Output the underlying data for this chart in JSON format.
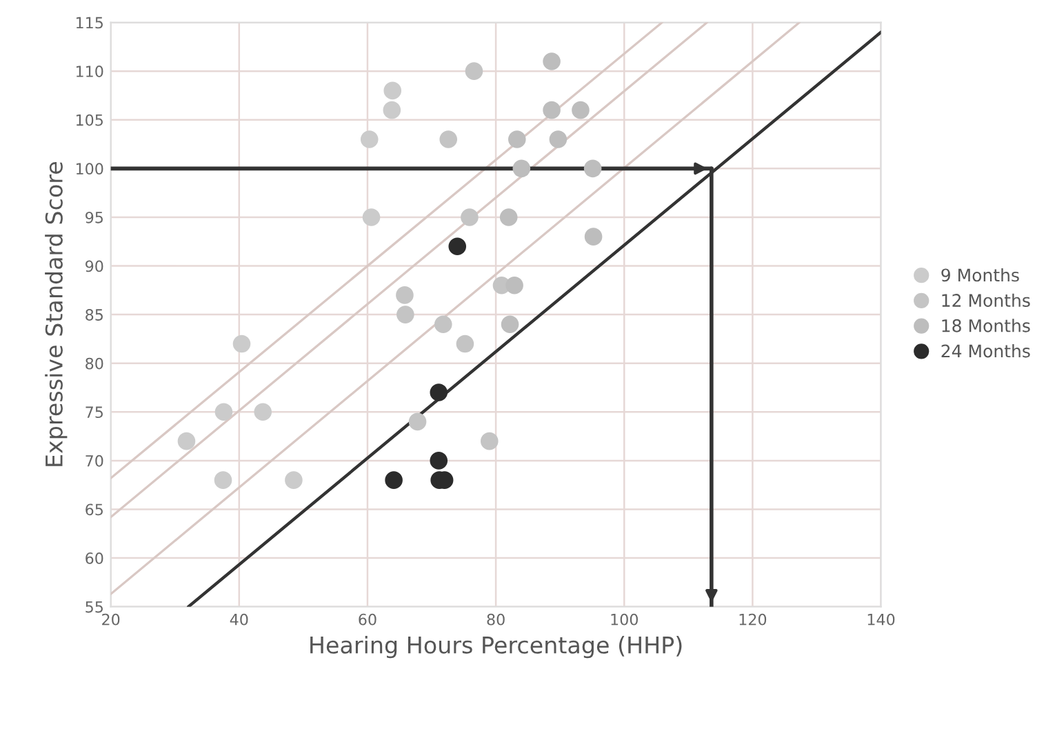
{
  "chart_data": {
    "type": "scatter",
    "xlabel": "Hearing Hours Percentage (HHP)",
    "ylabel": "Expressive Standard Score",
    "xlim": [
      20,
      140
    ],
    "xticks": [
      20,
      40,
      60,
      80,
      100,
      120,
      140
    ],
    "ylim": [
      55,
      115
    ],
    "yticks": [
      55,
      60,
      65,
      70,
      75,
      80,
      85,
      90,
      95,
      100,
      105,
      110,
      115
    ],
    "grid": true,
    "legend": "right",
    "marker": "circle",
    "series": [
      {
        "name": "9 Months",
        "color": "#cbcbcb",
        "x": [
          31.8,
          37.5,
          37.6,
          40.4,
          43.7,
          48.5,
          60.3,
          60.6,
          63.8,
          63.9
        ],
        "values": [
          72,
          68,
          75,
          82,
          75,
          68,
          103,
          95,
          106,
          108
        ]
      },
      {
        "name": "12 Months",
        "color": "#c4c4c4",
        "x": [
          65.8,
          65.9,
          67.8,
          71.8,
          72.6,
          75.2,
          75.9,
          76.6,
          79,
          80.9
        ],
        "values": [
          87,
          85,
          74,
          84,
          103,
          82,
          95,
          110,
          72,
          88
        ]
      },
      {
        "name": "18 Months",
        "color": "#bdbdbd",
        "x": [
          82,
          82.2,
          82.9,
          83.3,
          84,
          88.7,
          88.7,
          89.7,
          93.2,
          95.1,
          95.2
        ],
        "values": [
          95,
          84,
          88,
          103,
          100,
          111,
          106,
          103,
          106,
          100,
          93
        ]
      },
      {
        "name": "24 Months",
        "color": "#2b2b2b",
        "x": [
          64.1,
          71.1,
          71.1,
          71.2,
          72,
          74
        ],
        "values": [
          68,
          77,
          70,
          68,
          68,
          92
        ]
      },
      {
        "type": "line",
        "marker": "none",
        "color": "#d9c8c4",
        "x": [
          20,
          105.9
        ],
        "values": [
          68.2,
          115
        ]
      },
      {
        "type": "line",
        "marker": "none",
        "color": "#d9c8c4",
        "x": [
          20,
          112.9
        ],
        "values": [
          64.2,
          115
        ]
      },
      {
        "type": "line",
        "marker": "none",
        "color": "#d9c8c4",
        "x": [
          20,
          127.3
        ],
        "values": [
          56.3,
          115
        ]
      },
      {
        "type": "line",
        "marker": "none",
        "color": "#333333",
        "x": [
          32.1,
          140
        ],
        "values": [
          55,
          114
        ]
      },
      {
        "type": "line",
        "marker": "none",
        "color": "#333333",
        "x": [
          20,
          113.6
        ],
        "values": [
          100,
          100
        ]
      },
      {
        "type": "line",
        "marker": "none",
        "color": "#333333",
        "x": [
          113.6,
          113.6
        ],
        "values": [
          100,
          55
        ]
      }
    ]
  }
}
